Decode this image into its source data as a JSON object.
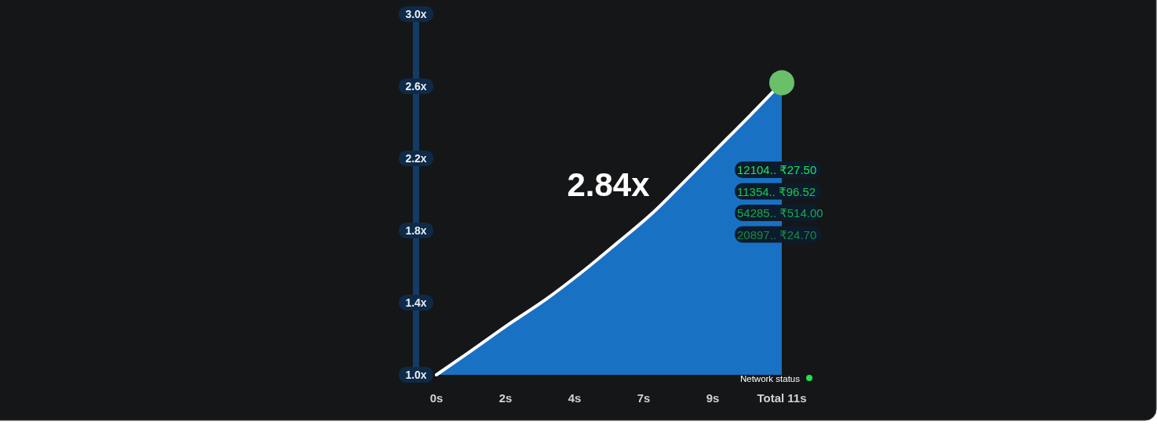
{
  "chart_data": {
    "type": "area",
    "x": [
      0,
      1,
      2.3,
      3.5,
      4.6,
      5.75,
      6.9,
      8,
      9.2,
      10,
      11
    ],
    "xlim": [
      0,
      11
    ],
    "xticks": [
      {
        "value": 0,
        "label": "0s"
      },
      {
        "value": 2.2,
        "label": "2s"
      },
      {
        "value": 4.4,
        "label": "4s"
      },
      {
        "value": 6.6,
        "label": "7s"
      },
      {
        "value": 8.8,
        "label": "9s"
      },
      {
        "value": 11,
        "label": "Total 11s"
      }
    ],
    "ylim": [
      1,
      3
    ],
    "yticks": [
      {
        "value": 1,
        "label": "1.0x"
      },
      {
        "value": 1.4,
        "label": "1.4x"
      },
      {
        "value": 1.8,
        "label": "1.8x"
      },
      {
        "value": 2.2,
        "label": "2.2x"
      },
      {
        "value": 2.6,
        "label": "2.6x"
      },
      {
        "value": 3,
        "label": "3.0x"
      }
    ],
    "series": [
      {
        "color": "#1971c4",
        "values": [
          1.0,
          1.12,
          1.28,
          1.42,
          1.565,
          1.73,
          1.9,
          2.09,
          2.3,
          2.44,
          2.62
        ]
      },
      {
        "type": "scatter",
        "color": "#6abf69",
        "x": [
          11
        ],
        "values": [
          2.62
        ]
      }
    ],
    "annotations": [
      "2.84x",
      "12104.. ₹27.50",
      "11354.. ₹96.52",
      "54285.. ₹514.00",
      "20897.. ₹24.70",
      "Network status"
    ],
    "grid": false
  }
}
